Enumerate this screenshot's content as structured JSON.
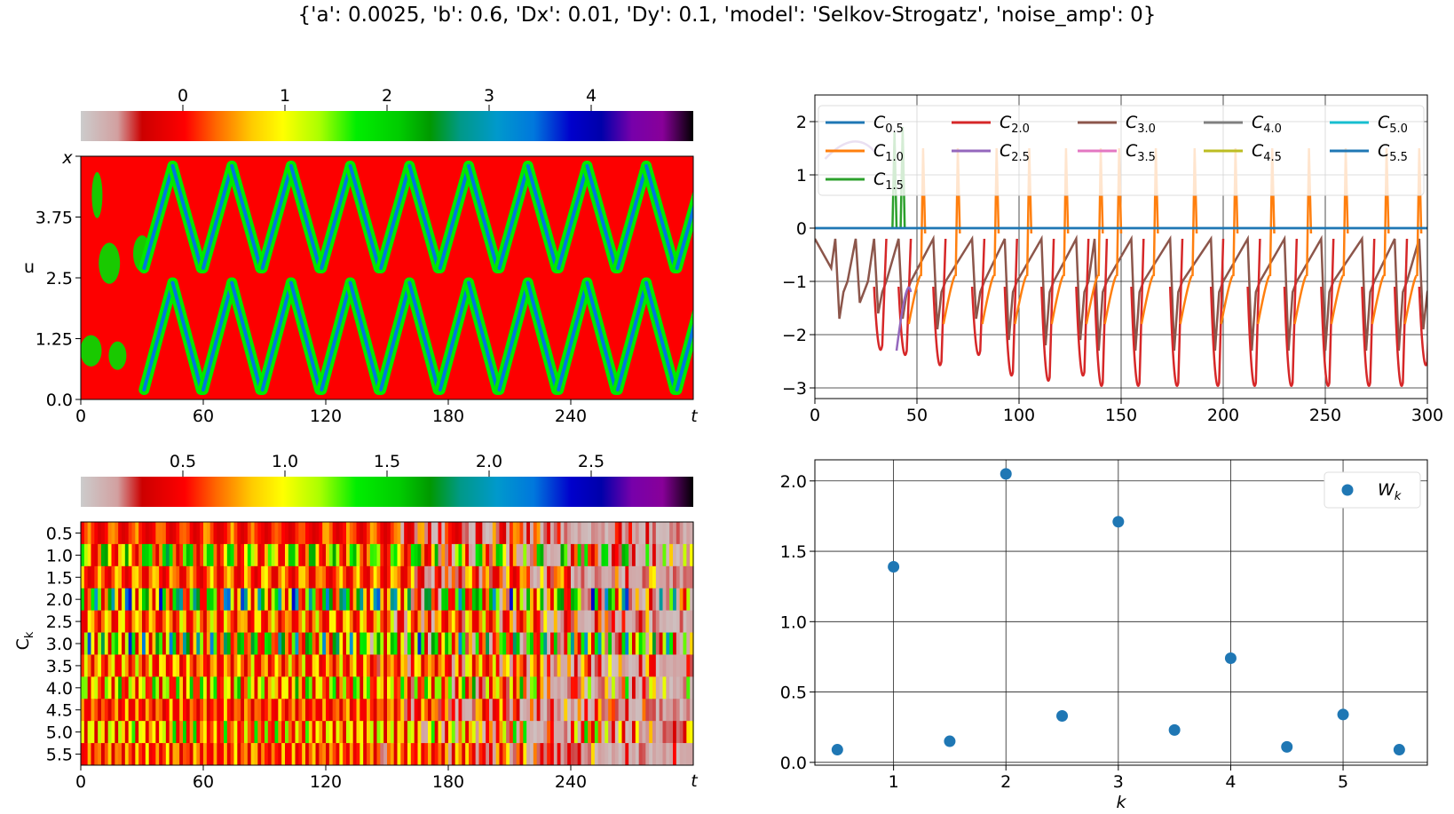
{
  "figure": {
    "title": "{'a': 0.0025, 'b': 0.6, 'Dx': 0.01, 'Dy': 0.1, 'model': 'Selkov-Strogatz', 'noise_amp': 0}"
  },
  "chart_data": [
    {
      "id": "u-heatmap",
      "type": "heatmap",
      "title": "",
      "xlabel": "t",
      "ylabel": "u",
      "y_top_label": "x",
      "xticks": [
        0,
        60,
        120,
        180,
        240
      ],
      "xlim": [
        0,
        300
      ],
      "yticks": [
        0.0,
        1.25,
        2.5,
        3.75
      ],
      "ylim": [
        0,
        5
      ],
      "colorbar": {
        "ticks": [
          0,
          1,
          2,
          3,
          4
        ],
        "range": [
          -1,
          5
        ],
        "colormap": "nipy_spectral_with_grey"
      },
      "background_value": 0.0,
      "stripe_value": 3.2
    },
    {
      "id": "c-timeseries",
      "type": "line",
      "title": "",
      "xlabel": "",
      "ylabel": "",
      "xlim": [
        0,
        300
      ],
      "ylim": [
        -3.2,
        2.5
      ],
      "xticks": [
        0,
        50,
        100,
        150,
        200,
        250,
        300
      ],
      "yticks": [
        -3,
        -2,
        -1,
        0,
        1,
        2
      ],
      "grid": true,
      "legend": {
        "placement": "top",
        "columns": 5
      },
      "series": [
        {
          "name": "C_0.5",
          "base": "C",
          "sub": "0.5",
          "color": "#1f77b4"
        },
        {
          "name": "C_1.0",
          "base": "C",
          "sub": "1.0",
          "color": "#ff7f0e"
        },
        {
          "name": "C_1.5",
          "base": "C",
          "sub": "1.5",
          "color": "#2ca02c"
        },
        {
          "name": "C_2.0",
          "base": "C",
          "sub": "2.0",
          "color": "#d62728"
        },
        {
          "name": "C_2.5",
          "base": "C",
          "sub": "2.5",
          "color": "#9467bd"
        },
        {
          "name": "C_3.0",
          "base": "C",
          "sub": "3.0",
          "color": "#8c564b"
        },
        {
          "name": "C_3.5",
          "base": "C",
          "sub": "3.5",
          "color": "#e377c2"
        },
        {
          "name": "C_4.0",
          "base": "C",
          "sub": "4.0",
          "color": "#7f7f7f"
        },
        {
          "name": "C_4.5",
          "base": "C",
          "sub": "4.5",
          "color": "#bcbd22"
        },
        {
          "name": "C_5.0",
          "base": "C",
          "sub": "5.0",
          "color": "#17becf"
        },
        {
          "name": "C_5.5",
          "base": "C",
          "sub": "5.5",
          "color": "#1f77b4"
        }
      ],
      "spike_times": [
        12,
        22,
        31,
        43,
        60,
        79,
        95,
        113,
        130,
        139,
        157,
        176,
        196,
        214,
        232,
        250,
        270,
        286,
        298
      ],
      "spike_min": [
        -2.3,
        -2.0,
        -2.2,
        -2.3,
        -2.5,
        -2.3,
        -2.7,
        -2.8,
        -2.7,
        -2.9,
        -2.9,
        -2.9,
        -2.9,
        -2.9,
        -2.9,
        -2.9,
        -2.9,
        -2.9,
        -2.5
      ]
    },
    {
      "id": "c-heatmap",
      "type": "heatmap",
      "title": "",
      "xlabel": "t",
      "ylabel": "C_k",
      "xticks": [
        0,
        60,
        120,
        180,
        240
      ],
      "xlim": [
        0,
        300
      ],
      "row_labels": [
        "0.5",
        "1.0",
        "1.5",
        "2.0",
        "2.5",
        "3.0",
        "3.5",
        "4.0",
        "4.5",
        "5.0",
        "5.5"
      ],
      "row_activity": [
        0.4,
        1.3,
        0.6,
        1.9,
        0.7,
        1.7,
        0.7,
        1.2,
        0.5,
        1.0,
        0.6
      ],
      "colorbar": {
        "ticks": [
          0.5,
          1.0,
          1.5,
          2.0,
          2.5
        ],
        "range": [
          0,
          3
        ],
        "colormap": "nipy_spectral_with_grey"
      }
    },
    {
      "id": "wk-scatter",
      "type": "scatter",
      "title": "",
      "xlabel": "k",
      "ylabel": "",
      "xlim": [
        0.3,
        5.75
      ],
      "ylim": [
        -0.02,
        2.15
      ],
      "xticks": [
        1,
        2,
        3,
        4,
        5
      ],
      "yticks": [
        0.0,
        0.5,
        1.0,
        1.5,
        2.0
      ],
      "grid": true,
      "legend": {
        "placement": "top-right",
        "label_base": "W",
        "label_sub": "k"
      },
      "color": "#1f77b4",
      "x": [
        0.5,
        1.0,
        1.5,
        2.0,
        2.5,
        3.0,
        3.5,
        4.0,
        4.5,
        5.0,
        5.5
      ],
      "y": [
        0.09,
        1.39,
        0.15,
        2.05,
        0.33,
        1.71,
        0.23,
        0.74,
        0.11,
        0.34,
        0.09
      ]
    }
  ]
}
